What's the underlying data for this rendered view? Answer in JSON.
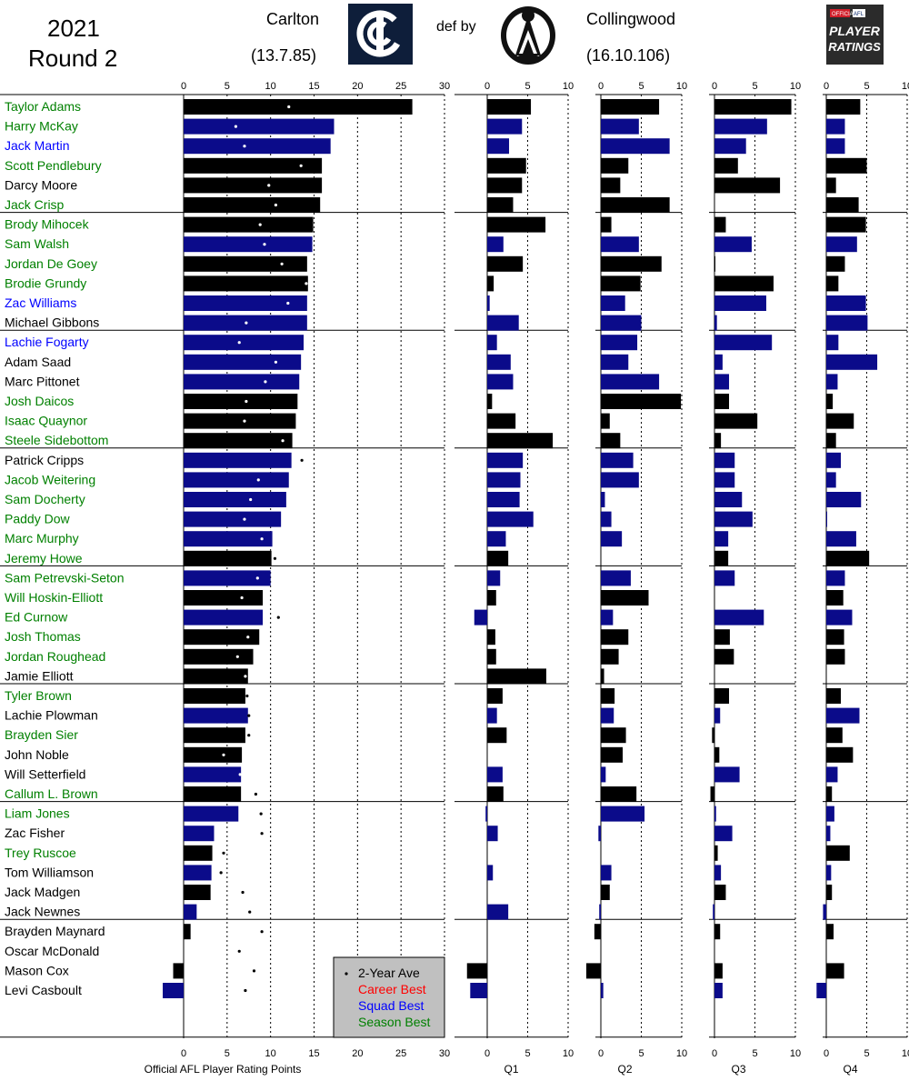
{
  "header": {
    "season": "2021",
    "round": "Round 2",
    "home_team": "Carlton",
    "home_score": "(13.7.85)",
    "result": "def by",
    "away_team": "Collingwood",
    "away_score": "(16.10.106)",
    "ratings_logo": {
      "top": "OFFICIAL",
      "badge": "AFL",
      "line1": "PLAYER",
      "line2": "RATINGS"
    }
  },
  "chart_data": {
    "type": "bar",
    "orientation": "horizontal",
    "xlabel": "Official AFL Player Rating Points",
    "xlim": [
      0,
      30
    ],
    "xticks": [
      0,
      5,
      10,
      15,
      20,
      25,
      30
    ],
    "quarter_xlim": [
      -3,
      10
    ],
    "quarter_xticks": [
      0,
      5,
      10
    ],
    "quarter_labels": [
      "Q1",
      "Q2",
      "Q3",
      "Q4"
    ],
    "colors": {
      "Carlton": "#000000",
      "Collingwood": "#000000",
      "highlight_squad": "#0b0b8a",
      "grid": "#000000"
    },
    "legend": {
      "position": "bottom-center",
      "items": [
        {
          "label": "2-Year Ave",
          "color": "#000000"
        },
        {
          "label": "Career Best",
          "color": "#ff0000"
        },
        {
          "label": "Squad Best",
          "color": "#0000ff"
        },
        {
          "label": "Season Best",
          "color": "#008000"
        }
      ]
    },
    "players": [
      {
        "name": "Taylor Adams",
        "label_color": "#008000",
        "bar_color": "#000000",
        "total": 26.3,
        "avg": 12.1,
        "q": [
          5.4,
          7.2,
          9.5,
          4.2
        ]
      },
      {
        "name": "Harry McKay",
        "label_color": "#008000",
        "bar_color": "#0b0b8a",
        "total": 17.3,
        "avg": 6.0,
        "q": [
          4.3,
          4.7,
          6.5,
          2.3
        ]
      },
      {
        "name": "Jack Martin",
        "label_color": "#0000ff",
        "bar_color": "#0b0b8a",
        "total": 16.9,
        "avg": 7.0,
        "q": [
          2.7,
          8.5,
          3.9,
          2.3
        ]
      },
      {
        "name": "Scott Pendlebury",
        "label_color": "#008000",
        "bar_color": "#000000",
        "total": 15.9,
        "avg": 13.5,
        "q": [
          4.8,
          3.4,
          2.9,
          5.0
        ]
      },
      {
        "name": "Darcy Moore",
        "label_color": "#000000",
        "bar_color": "#000000",
        "total": 15.9,
        "avg": 9.8,
        "q": [
          4.3,
          2.4,
          8.1,
          1.2
        ]
      },
      {
        "name": "Jack Crisp",
        "label_color": "#008000",
        "bar_color": "#000000",
        "total": 15.7,
        "avg": 10.6,
        "q": [
          3.2,
          8.5,
          0.0,
          4.0
        ]
      },
      {
        "name": "Brody Mihocek",
        "label_color": "#008000",
        "bar_color": "#000000",
        "total": 14.9,
        "avg": 8.8,
        "q": [
          7.2,
          1.3,
          1.4,
          4.9
        ]
      },
      {
        "name": "Sam Walsh",
        "label_color": "#008000",
        "bar_color": "#0b0b8a",
        "total": 14.8,
        "avg": 9.3,
        "q": [
          2.0,
          4.7,
          4.6,
          3.8
        ]
      },
      {
        "name": "Jordan De Goey",
        "label_color": "#008000",
        "bar_color": "#000000",
        "total": 14.2,
        "avg": 11.3,
        "q": [
          4.4,
          7.5,
          0.1,
          2.3
        ]
      },
      {
        "name": "Brodie Grundy",
        "label_color": "#008000",
        "bar_color": "#000000",
        "total": 14.3,
        "avg": 14.1,
        "q": [
          0.8,
          4.9,
          7.3,
          1.5
        ]
      },
      {
        "name": "Zac Williams",
        "label_color": "#0000ff",
        "bar_color": "#0b0b8a",
        "total": 14.2,
        "avg": 12.0,
        "q": [
          0.3,
          3.0,
          6.4,
          4.9
        ]
      },
      {
        "name": "Michael Gibbons",
        "label_color": "#000000",
        "bar_color": "#0b0b8a",
        "total": 14.2,
        "avg": 7.2,
        "q": [
          3.9,
          5.0,
          0.3,
          5.1
        ]
      },
      {
        "name": "Lachie Fogarty",
        "label_color": "#0000ff",
        "bar_color": "#0b0b8a",
        "total": 13.8,
        "avg": 6.4,
        "q": [
          1.2,
          4.5,
          7.1,
          1.5
        ]
      },
      {
        "name": "Adam Saad",
        "label_color": "#000000",
        "bar_color": "#0b0b8a",
        "total": 13.5,
        "avg": 10.6,
        "q": [
          2.9,
          3.4,
          1.0,
          6.3
        ]
      },
      {
        "name": "Marc Pittonet",
        "label_color": "#000000",
        "bar_color": "#0b0b8a",
        "total": 13.3,
        "avg": 9.4,
        "q": [
          3.2,
          7.2,
          1.8,
          1.4
        ]
      },
      {
        "name": "Josh Daicos",
        "label_color": "#008000",
        "bar_color": "#000000",
        "total": 13.1,
        "avg": 7.2,
        "q": [
          0.6,
          9.9,
          1.8,
          0.8
        ]
      },
      {
        "name": "Isaac Quaynor",
        "label_color": "#008000",
        "bar_color": "#000000",
        "total": 12.9,
        "avg": 7.0,
        "q": [
          3.5,
          1.1,
          5.3,
          3.4
        ]
      },
      {
        "name": "Steele Sidebottom",
        "label_color": "#008000",
        "bar_color": "#000000",
        "total": 12.5,
        "avg": 11.4,
        "q": [
          8.1,
          2.4,
          0.8,
          1.2
        ]
      },
      {
        "name": "Patrick Cripps",
        "label_color": "#000000",
        "bar_color": "#0b0b8a",
        "total": 12.4,
        "avg": 13.6,
        "q": [
          4.4,
          4.0,
          2.5,
          1.8
        ]
      },
      {
        "name": "Jacob Weitering",
        "label_color": "#008000",
        "bar_color": "#0b0b8a",
        "total": 12.1,
        "avg": 8.6,
        "q": [
          4.1,
          4.7,
          2.5,
          1.2
        ]
      },
      {
        "name": "Sam Docherty",
        "label_color": "#008000",
        "bar_color": "#0b0b8a",
        "total": 11.8,
        "avg": 7.7,
        "q": [
          4.0,
          0.5,
          3.4,
          4.3
        ]
      },
      {
        "name": "Paddy Dow",
        "label_color": "#008000",
        "bar_color": "#0b0b8a",
        "total": 11.2,
        "avg": 7.0,
        "q": [
          5.7,
          1.3,
          4.7,
          0.1
        ]
      },
      {
        "name": "Marc Murphy",
        "label_color": "#008000",
        "bar_color": "#0b0b8a",
        "total": 10.2,
        "avg": 9.0,
        "q": [
          2.3,
          2.6,
          1.7,
          3.7
        ]
      },
      {
        "name": "Jeremy Howe",
        "label_color": "#008000",
        "bar_color": "#000000",
        "total": 10.1,
        "avg": 10.5,
        "q": [
          2.6,
          0.0,
          1.7,
          5.3
        ]
      },
      {
        "name": "Sam Petrevski-Seton",
        "label_color": "#008000",
        "bar_color": "#0b0b8a",
        "total": 10.0,
        "avg": 8.5,
        "q": [
          1.6,
          3.7,
          2.5,
          2.3
        ]
      },
      {
        "name": "Will Hoskin-Elliott",
        "label_color": "#008000",
        "bar_color": "#000000",
        "total": 9.1,
        "avg": 6.7,
        "q": [
          1.1,
          5.9,
          0.0,
          2.1
        ]
      },
      {
        "name": "Ed Curnow",
        "label_color": "#008000",
        "bar_color": "#0b0b8a",
        "total": 9.1,
        "avg": 10.9,
        "q": [
          -1.6,
          1.5,
          6.1,
          3.2
        ]
      },
      {
        "name": "Josh Thomas",
        "label_color": "#008000",
        "bar_color": "#000000",
        "total": 8.7,
        "avg": 7.4,
        "q": [
          1.0,
          3.4,
          1.9,
          2.2
        ]
      },
      {
        "name": "Jordan Roughead",
        "label_color": "#008000",
        "bar_color": "#000000",
        "total": 8.0,
        "avg": 6.2,
        "q": [
          1.1,
          2.2,
          2.4,
          2.3
        ]
      },
      {
        "name": "Jamie Elliott",
        "label_color": "#000000",
        "bar_color": "#000000",
        "total": 7.4,
        "avg": 7.1,
        "q": [
          7.3,
          0.4,
          0.0,
          0.0
        ]
      },
      {
        "name": "Tyler Brown",
        "label_color": "#008000",
        "bar_color": "#000000",
        "total": 7.1,
        "avg": 7.3,
        "q": [
          1.9,
          1.7,
          1.8,
          1.8
        ]
      },
      {
        "name": "Lachie Plowman",
        "label_color": "#000000",
        "bar_color": "#0b0b8a",
        "total": 7.4,
        "avg": 7.5,
        "q": [
          1.2,
          1.6,
          0.7,
          4.1
        ]
      },
      {
        "name": "Brayden Sier",
        "label_color": "#008000",
        "bar_color": "#000000",
        "total": 7.1,
        "avg": 7.5,
        "q": [
          2.4,
          3.1,
          -0.3,
          2.0
        ]
      },
      {
        "name": "John Noble",
        "label_color": "#000000",
        "bar_color": "#000000",
        "total": 6.7,
        "avg": 4.6,
        "q": [
          0.0,
          2.7,
          0.6,
          3.3
        ]
      },
      {
        "name": "Will Setterfield",
        "label_color": "#000000",
        "bar_color": "#0b0b8a",
        "total": 6.6,
        "avg": 6.5,
        "q": [
          1.9,
          0.6,
          3.1,
          1.4
        ]
      },
      {
        "name": "Callum L. Brown",
        "label_color": "#008000",
        "bar_color": "#000000",
        "total": 6.6,
        "avg": 8.3,
        "q": [
          2.0,
          4.4,
          -0.5,
          0.7
        ]
      },
      {
        "name": "Liam Jones",
        "label_color": "#008000",
        "bar_color": "#0b0b8a",
        "total": 6.3,
        "avg": 8.9,
        "q": [
          -0.2,
          5.4,
          0.2,
          1.0
        ]
      },
      {
        "name": "Zac Fisher",
        "label_color": "#000000",
        "bar_color": "#0b0b8a",
        "total": 3.5,
        "avg": 9.0,
        "q": [
          1.3,
          -0.3,
          2.2,
          0.5
        ]
      },
      {
        "name": "Trey Ruscoe",
        "label_color": "#008000",
        "bar_color": "#000000",
        "total": 3.3,
        "avg": 4.6,
        "q": [
          0.0,
          0.0,
          0.4,
          2.9
        ]
      },
      {
        "name": "Tom Williamson",
        "label_color": "#000000",
        "bar_color": "#0b0b8a",
        "total": 3.2,
        "avg": 4.3,
        "q": [
          0.7,
          1.3,
          0.8,
          0.6
        ]
      },
      {
        "name": "Jack Madgen",
        "label_color": "#000000",
        "bar_color": "#000000",
        "total": 3.1,
        "avg": 6.8,
        "q": [
          0.0,
          1.1,
          1.4,
          0.7
        ]
      },
      {
        "name": "Jack Newnes",
        "label_color": "#000000",
        "bar_color": "#0b0b8a",
        "total": 1.5,
        "avg": 7.6,
        "q": [
          2.6,
          -0.2,
          -0.2,
          -0.4
        ]
      },
      {
        "name": "Brayden Maynard",
        "label_color": "#000000",
        "bar_color": "#000000",
        "total": 0.8,
        "avg": 9.0,
        "q": [
          0.0,
          -0.8,
          0.7,
          0.9
        ]
      },
      {
        "name": "Oscar McDonald",
        "label_color": "#000000",
        "bar_color": "#000000",
        "total": 0.0,
        "avg": 6.4,
        "q": [
          0.0,
          0.0,
          0.0,
          0.0
        ]
      },
      {
        "name": "Mason Cox",
        "label_color": "#000000",
        "bar_color": "#000000",
        "total": -1.2,
        "avg": 8.1,
        "q": [
          -2.5,
          -1.8,
          1.0,
          2.2
        ]
      },
      {
        "name": "Levi Casboult",
        "label_color": "#000000",
        "bar_color": "#0b0b8a",
        "total": -2.4,
        "avg": 7.1,
        "q": [
          -2.1,
          0.3,
          1.0,
          -1.2
        ]
      }
    ]
  }
}
